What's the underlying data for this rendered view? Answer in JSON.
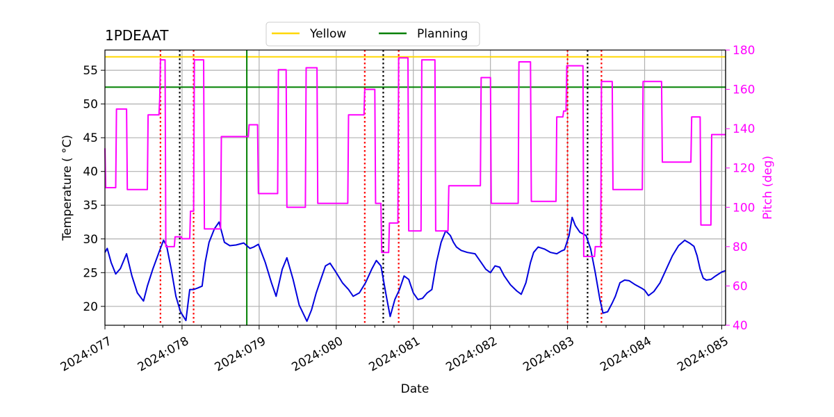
{
  "chart_data": {
    "type": "line",
    "title": "1PDEAAT",
    "xlabel": "Date",
    "ylabel": "Temperature ($^\\circ$C)",
    "ylabel_display": "Temperature ( °C)",
    "y2label": "Pitch (deg)",
    "xlim": [
      77.0,
      85.05
    ],
    "ylim": [
      17.2,
      58.0
    ],
    "y2lim": [
      40,
      180
    ],
    "x_ticks": [
      {
        "value": 77,
        "label": "2024:077"
      },
      {
        "value": 78,
        "label": "2024:078"
      },
      {
        "value": 79,
        "label": "2024:079"
      },
      {
        "value": 80,
        "label": "2024:080"
      },
      {
        "value": 81,
        "label": "2024:081"
      },
      {
        "value": 82,
        "label": "2024:082"
      },
      {
        "value": 83,
        "label": "2024:083"
      },
      {
        "value": 84,
        "label": "2024:084"
      },
      {
        "value": 85,
        "label": "2024:085"
      }
    ],
    "y_ticks": [
      20,
      25,
      30,
      35,
      40,
      45,
      50,
      55
    ],
    "y2_ticks": [
      40,
      60,
      80,
      100,
      120,
      140,
      160,
      180
    ],
    "grid": true,
    "legend_position": "top-center",
    "legend": [
      {
        "name": "Yellow",
        "color": "#ffd700"
      },
      {
        "name": "Planning",
        "color": "#008000"
      }
    ],
    "limits": [
      {
        "name": "Yellow",
        "value": 57.0,
        "color": "#ffd700"
      },
      {
        "name": "Planning",
        "value": 52.5,
        "color": "#008000"
      }
    ],
    "vertical_markers": [
      {
        "x": 78.84,
        "color": "#008000",
        "style": "solid"
      },
      {
        "x": 77.72,
        "color": "#ff0000",
        "style": "dotted"
      },
      {
        "x": 78.15,
        "color": "#ff0000",
        "style": "dotted"
      },
      {
        "x": 80.37,
        "color": "#ff0000",
        "style": "dotted"
      },
      {
        "x": 80.81,
        "color": "#ff0000",
        "style": "dotted"
      },
      {
        "x": 83.0,
        "color": "#ff0000",
        "style": "dotted"
      },
      {
        "x": 83.44,
        "color": "#ff0000",
        "style": "dotted"
      },
      {
        "x": 77.97,
        "color": "#000000",
        "style": "dotted"
      },
      {
        "x": 80.61,
        "color": "#000000",
        "style": "dotted"
      },
      {
        "x": 83.26,
        "color": "#000000",
        "style": "dotted"
      }
    ],
    "series": [
      {
        "axis": "left",
        "color": "#0000dd",
        "x": [
          77.0,
          77.03,
          77.08,
          77.14,
          77.2,
          77.28,
          77.35,
          77.42,
          77.5,
          77.55,
          77.62,
          77.7,
          77.76,
          77.8,
          77.86,
          77.92,
          77.98,
          78.05,
          78.1,
          78.15,
          78.2,
          78.26,
          78.3,
          78.35,
          78.42,
          78.48,
          78.55,
          78.62,
          78.7,
          78.8,
          78.88,
          78.93,
          78.99,
          79.08,
          79.16,
          79.22,
          79.3,
          79.36,
          79.44,
          79.52,
          79.62,
          79.68,
          79.74,
          79.8,
          79.86,
          79.92,
          80.0,
          80.08,
          80.16,
          80.22,
          80.3,
          80.38,
          80.46,
          80.52,
          80.58,
          80.65,
          80.7,
          80.76,
          80.82,
          80.88,
          80.94,
          81.0,
          81.06,
          81.12,
          81.18,
          81.24,
          81.3,
          81.36,
          81.42,
          81.48,
          81.52,
          81.56,
          81.62,
          81.7,
          81.8,
          81.88,
          81.94,
          82.0,
          82.06,
          82.12,
          82.18,
          82.26,
          82.34,
          82.4,
          82.46,
          82.52,
          82.56,
          82.62,
          82.7,
          82.78,
          82.86,
          82.92,
          82.96,
          83.02,
          83.06,
          83.1,
          83.16,
          83.24,
          83.3,
          83.36,
          83.42,
          83.46,
          83.52,
          83.58,
          83.62,
          83.68,
          83.74,
          83.8,
          83.88,
          83.96,
          84.0,
          84.05,
          84.12,
          84.2,
          84.28,
          84.36,
          84.44,
          84.52,
          84.58,
          84.64,
          84.68,
          84.72,
          84.76,
          84.8,
          84.86,
          84.92,
          85.0,
          85.05
        ],
        "y": [
          28.0,
          28.6,
          26.5,
          24.8,
          25.6,
          27.8,
          24.5,
          22.0,
          20.8,
          23.0,
          25.5,
          28.0,
          29.8,
          29.0,
          25.5,
          21.5,
          19.2,
          17.9,
          22.5,
          22.5,
          22.7,
          23.0,
          26.5,
          29.5,
          31.5,
          32.5,
          29.5,
          29.0,
          29.1,
          29.4,
          28.6,
          28.8,
          29.2,
          26.5,
          23.5,
          21.5,
          25.5,
          27.2,
          24.0,
          20.2,
          17.8,
          19.5,
          22.0,
          24.0,
          26.0,
          26.4,
          25.0,
          23.5,
          22.5,
          21.5,
          22.0,
          23.5,
          25.5,
          26.8,
          26.0,
          21.5,
          18.5,
          21.0,
          22.5,
          24.5,
          24.0,
          22.0,
          21.0,
          21.2,
          22.0,
          22.5,
          26.5,
          29.5,
          31.2,
          30.5,
          29.5,
          28.8,
          28.3,
          28.0,
          27.8,
          26.5,
          25.5,
          25.0,
          26.0,
          25.8,
          24.5,
          23.2,
          22.3,
          21.8,
          23.5,
          26.5,
          28.0,
          28.8,
          28.5,
          28.0,
          27.8,
          28.2,
          28.4,
          30.5,
          33.2,
          32.0,
          31.0,
          30.5,
          28.5,
          25.0,
          21.0,
          19.0,
          19.2,
          20.5,
          21.5,
          23.5,
          23.9,
          23.8,
          23.2,
          22.7,
          22.4,
          21.6,
          22.2,
          23.5,
          25.5,
          27.5,
          29.0,
          29.8,
          29.4,
          28.9,
          27.5,
          25.5,
          24.2,
          23.9,
          24.0,
          24.5,
          25.1,
          25.3
        ]
      },
      {
        "axis": "right",
        "color": "#ff00ff",
        "x": [
          77.0,
          77.01,
          77.14,
          77.15,
          77.28,
          77.29,
          77.55,
          77.56,
          77.7,
          77.71,
          77.72,
          77.78,
          77.79,
          77.9,
          77.91,
          77.99,
          78.0,
          78.1,
          78.11,
          78.15,
          78.16,
          78.2,
          78.21,
          78.28,
          78.29,
          78.44,
          78.45,
          78.5,
          78.51,
          78.72,
          78.73,
          78.86,
          78.87,
          78.98,
          78.99,
          79.24,
          79.25,
          79.35,
          79.36,
          79.6,
          79.61,
          79.75,
          79.76,
          80.15,
          80.16,
          80.36,
          80.37,
          80.5,
          80.51,
          80.58,
          80.59,
          80.68,
          80.69,
          80.8,
          80.81,
          80.93,
          80.94,
          81.1,
          81.11,
          81.28,
          81.29,
          81.45,
          81.46,
          81.5,
          81.51,
          81.87,
          81.88,
          82.0,
          82.01,
          82.36,
          82.37,
          82.52,
          82.53,
          82.56,
          82.57,
          82.85,
          82.86,
          82.94,
          82.95,
          82.98,
          82.99,
          83.02,
          83.03,
          83.2,
          83.21,
          83.35,
          83.36,
          83.43,
          83.44,
          83.58,
          83.59,
          83.97,
          83.98,
          84.22,
          84.23,
          84.6,
          84.61,
          84.72,
          84.73,
          84.77,
          84.78,
          84.86,
          84.87,
          85.05
        ],
        "y": [
          130,
          110,
          110,
          150,
          150,
          109,
          109,
          147,
          147,
          155,
          175,
          175,
          80,
          80,
          85,
          85,
          84,
          84,
          98,
          98,
          175,
          175,
          175,
          175,
          89,
          89,
          89,
          89,
          136,
          136,
          136,
          136,
          142,
          142,
          107,
          107,
          170,
          170,
          100,
          100,
          171,
          171,
          102,
          102,
          147,
          147,
          160,
          160,
          102,
          102,
          77,
          77,
          92,
          92,
          176,
          176,
          88,
          88,
          175,
          175,
          88,
          88,
          111,
          111,
          111,
          111,
          166,
          166,
          102,
          102,
          174,
          174,
          103,
          103,
          103,
          103,
          146,
          146,
          149,
          149,
          172,
          172,
          172,
          172,
          75,
          75,
          80,
          80,
          164,
          164,
          109,
          109,
          164,
          164,
          123,
          123,
          146,
          146,
          91,
          91,
          91,
          91,
          137,
          137
        ]
      }
    ]
  }
}
